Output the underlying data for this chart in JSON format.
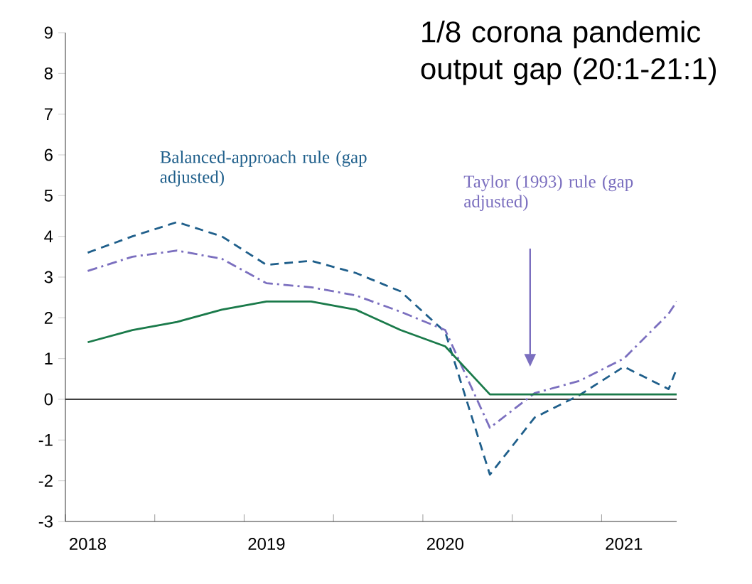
{
  "chart_data": {
    "type": "line",
    "title": "1/8 corona pandemic output gap (20:1-21:1)",
    "x": [
      2018.125,
      2018.375,
      2018.625,
      2018.875,
      2019.125,
      2019.375,
      2019.625,
      2019.875,
      2020.125,
      2020.375,
      2020.625,
      2020.875,
      2021.125,
      2021.375,
      2021.42
    ],
    "series": [
      {
        "name": "Balanced-approach rule (gap adjusted)",
        "color": "#1f5f8b",
        "line_style": "dashed",
        "values": [
          3.6,
          4.0,
          4.35,
          4.0,
          3.3,
          3.4,
          3.1,
          2.65,
          1.65,
          -1.85,
          -0.45,
          0.1,
          0.8,
          0.25,
          0.75
        ]
      },
      {
        "name": "Taylor (1993) rule (gap adjusted)",
        "color": "#7b6fbf",
        "line_style": "dashdot",
        "values": [
          3.15,
          3.5,
          3.65,
          3.45,
          2.85,
          2.75,
          2.55,
          2.15,
          1.7,
          -0.7,
          0.15,
          0.45,
          1.0,
          2.1,
          2.4
        ]
      },
      {
        "color": "#1a7a4a",
        "line_style": "solid",
        "values": [
          1.4,
          1.7,
          1.9,
          2.2,
          2.4,
          2.4,
          2.2,
          1.7,
          1.3,
          0.12,
          0.12,
          0.12,
          0.12,
          0.12,
          0.12
        ]
      }
    ],
    "xlim": [
      2018,
      2021.42
    ],
    "xticks": [
      {
        "value": 2018,
        "label": null
      },
      {
        "value": 2018.125,
        "label": "2018"
      },
      {
        "value": 2018.5,
        "label": null
      },
      {
        "value": 2019,
        "label": null
      },
      {
        "value": 2019.125,
        "label": "2019"
      },
      {
        "value": 2019.5,
        "label": null
      },
      {
        "value": 2020,
        "label": null
      },
      {
        "value": 2020.125,
        "label": "2020"
      },
      {
        "value": 2020.5,
        "label": null
      },
      {
        "value": 2021,
        "label": null
      },
      {
        "value": 2021.125,
        "label": "2021"
      }
    ],
    "ylim": [
      -3,
      9
    ],
    "yticks": [
      -3,
      -2,
      -1,
      0,
      1,
      2,
      3,
      4,
      5,
      6,
      7,
      8,
      9
    ],
    "ref_lines": [
      {
        "axis": "y",
        "value": 0,
        "color": "#000000"
      }
    ],
    "grid": false,
    "legend": false,
    "marker": "none"
  }
}
